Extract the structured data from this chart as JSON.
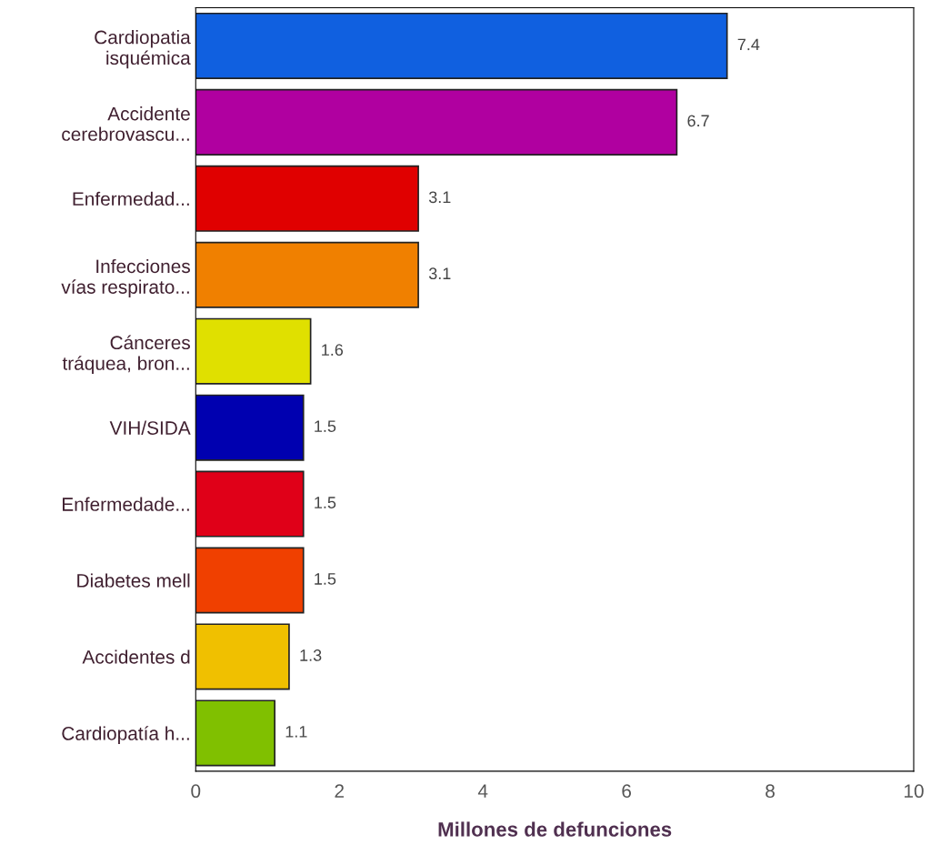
{
  "chart_data": {
    "type": "bar",
    "orientation": "horizontal",
    "xlabel": "Millones de defunciones",
    "categories": [
      "Cardiopatia\nisquémica",
      "Accidente\ncerebrovascu...",
      "Enfermedad...",
      "Infecciones\nvías respirato...",
      "Cánceres\ntráquea, bron...",
      "VIH/SIDA",
      "Enfermedade...",
      "Diabetes mell",
      "Accidentes d",
      "Cardiopatía h..."
    ],
    "values": [
      7.4,
      6.7,
      3.1,
      3.1,
      1.6,
      1.5,
      1.5,
      1.5,
      1.3,
      1.1
    ],
    "colors": [
      "#1060e0",
      "#b000a0",
      "#e00000",
      "#f08000",
      "#e0e000",
      "#0000b0",
      "#e00018",
      "#f04000",
      "#f0c000",
      "#80c000"
    ],
    "xlim": [
      0,
      10
    ],
    "xticks": [
      0,
      2,
      4,
      6,
      8,
      10
    ],
    "data_labels": true,
    "grid": false,
    "legend": false
  }
}
